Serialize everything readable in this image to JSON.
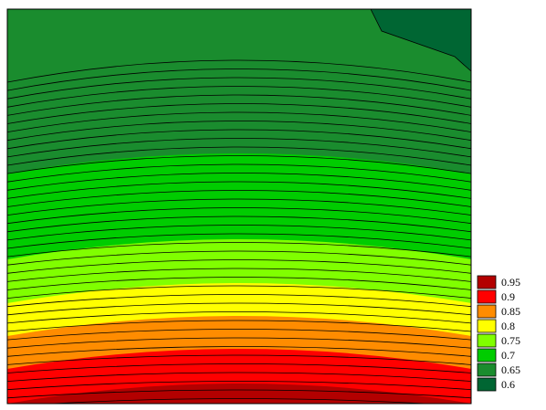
{
  "chart_data": {
    "type": "contour",
    "levels": [
      0.95,
      0.9,
      0.85,
      0.8,
      0.75,
      0.7,
      0.65,
      0.6
    ],
    "colors": [
      "#b30000",
      "#ff0000",
      "#ff8c00",
      "#ffff00",
      "#80ff00",
      "#00cc00",
      "#1a8c2e",
      "#006633"
    ]
  }
}
